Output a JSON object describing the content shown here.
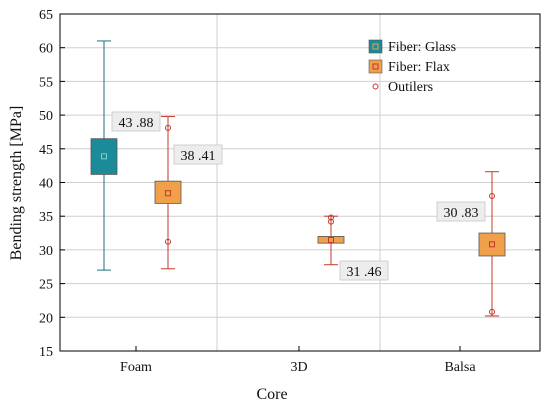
{
  "chart_data": {
    "type": "box",
    "title": "",
    "xlabel": "Core",
    "ylabel": "Bending strength [MPa]",
    "ylim": [
      15,
      65
    ],
    "yticks": [
      15,
      20,
      25,
      30,
      35,
      40,
      45,
      50,
      55,
      60,
      65
    ],
    "categories": [
      "Foam",
      "3D",
      "Balsa"
    ],
    "grid": true,
    "legend_position": "top-right",
    "series": [
      {
        "name": "Fiber: Glass",
        "color": "#1b8a99",
        "whisker_color": "#1f6f80",
        "boxes": [
          {
            "category": "Foam",
            "mean": 43.88,
            "q1": 41.2,
            "q3": 46.5,
            "whisker_low": 27.0,
            "whisker_high": 61.0,
            "label": "43 .88",
            "outliers": []
          }
        ]
      },
      {
        "name": "Fiber: Flax",
        "color": "#f0a04b",
        "whisker_color": "#c0392b",
        "boxes": [
          {
            "category": "Foam",
            "mean": 38.41,
            "q1": 36.9,
            "q3": 40.2,
            "whisker_low": 27.2,
            "whisker_high": 49.8,
            "label": "38 .41",
            "outliers": [
              48.1,
              31.2
            ]
          },
          {
            "category": "3D",
            "mean": 31.46,
            "q1": 31.0,
            "q3": 32.0,
            "whisker_low": 27.8,
            "whisker_high": 35.0,
            "label": "31 .46",
            "outliers": [
              34.8,
              34.2
            ]
          },
          {
            "category": "Balsa",
            "mean": 30.83,
            "q1": 29.1,
            "q3": 32.5,
            "whisker_low": 20.2,
            "whisker_high": 41.6,
            "label": "30 .83",
            "outliers": [
              38.0,
              20.8
            ]
          }
        ]
      }
    ],
    "legend": [
      {
        "label": "Fiber: Glass",
        "kind": "box",
        "color": "#1b8a99",
        "marker_color": "#f0a04b"
      },
      {
        "label": "Fiber: Flax",
        "kind": "box",
        "color": "#f0a04b",
        "marker_color": "#c0392b"
      },
      {
        "label": "Outilers",
        "kind": "circle",
        "color": "#c0392b"
      }
    ]
  }
}
